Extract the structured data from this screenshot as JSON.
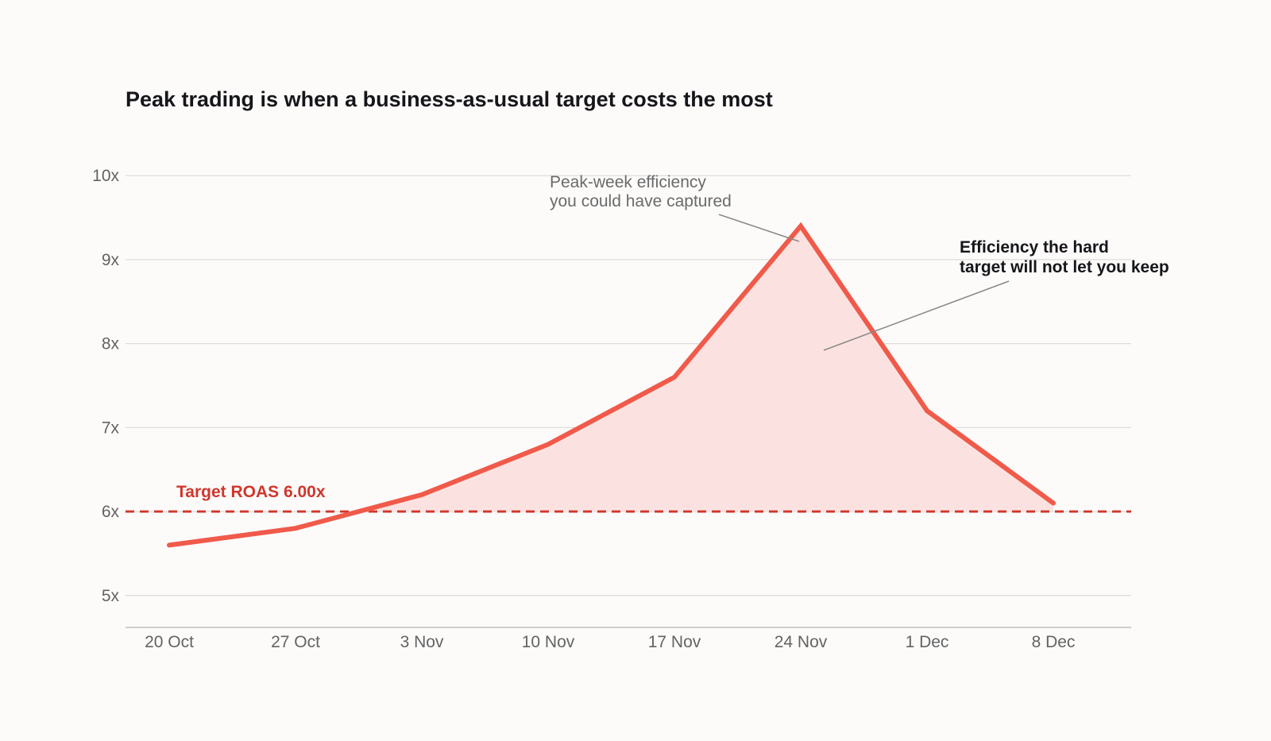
{
  "chart_data": {
    "type": "line",
    "title": "Peak trading is when a business-as-usual target costs the most",
    "xlabel": "",
    "ylabel": "",
    "categories": [
      "20 Oct",
      "27 Oct",
      "3 Nov",
      "10 Nov",
      "17 Nov",
      "24 Nov",
      "1 Dec",
      "8 Dec"
    ],
    "y_ticks": [
      {
        "value": 5,
        "label": "5x"
      },
      {
        "value": 6,
        "label": "6x"
      },
      {
        "value": 7,
        "label": "7x"
      },
      {
        "value": 8,
        "label": "8x"
      },
      {
        "value": 9,
        "label": "9x"
      },
      {
        "value": 10,
        "label": "10x"
      }
    ],
    "ylim": [
      4.62,
      10.2
    ],
    "grid": true,
    "series": [
      {
        "values": [
          5.6,
          5.8,
          6.2,
          6.8,
          7.6,
          9.4,
          7.2,
          6.1
        ],
        "color": "#f05a4a"
      }
    ],
    "fill_above_target_color": "#fbe2e0",
    "target": {
      "value": 6.0,
      "label": "Target ROAS 6.00x",
      "color": "#d0362c"
    },
    "annotations": [
      {
        "id": "peak",
        "lines": [
          "Peak-week efficiency",
          "you could have captured"
        ],
        "style": "grey"
      },
      {
        "id": "lost",
        "lines": [
          "Efficiency the hard",
          "target will not let you keep"
        ],
        "style": "dark"
      }
    ]
  }
}
